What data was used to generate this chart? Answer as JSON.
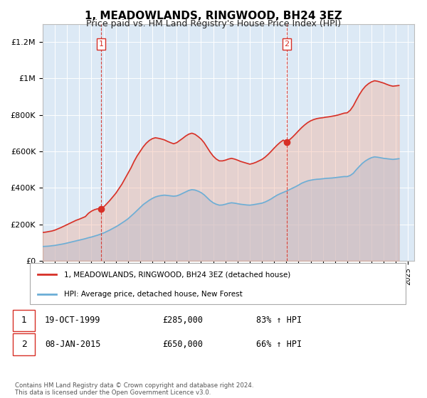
{
  "title": "1, MEADOWLANDS, RINGWOOD, BH24 3EZ",
  "subtitle": "Price paid vs. HM Land Registry's House Price Index (HPI)",
  "title_fontsize": 11,
  "subtitle_fontsize": 9,
  "background_color": "#ffffff",
  "plot_bg_color": "#dce9f5",
  "grid_color": "#ffffff",
  "ylabel_ticks": [
    "£0",
    "£200K",
    "£400K",
    "£600K",
    "£800K",
    "£1M",
    "£1.2M"
  ],
  "ytick_values": [
    0,
    200000,
    400000,
    600000,
    800000,
    1000000,
    1200000
  ],
  "ylim": [
    0,
    1300000
  ],
  "xlim_start": 1995.0,
  "xlim_end": 2025.5,
  "hpi_line_color": "#6baed6",
  "price_line_color": "#d73027",
  "hpi_fill_color": "#a8c8e8",
  "price_fill_color": "#f4a58a",
  "purchase1_x": 1999.8,
  "purchase1_y": 285000,
  "purchase1_label": "1",
  "purchase2_x": 2015.05,
  "purchase2_y": 650000,
  "purchase2_label": "2",
  "marker_vline_color": "#d73027",
  "legend_entries": [
    "1, MEADOWLANDS, RINGWOOD, BH24 3EZ (detached house)",
    "HPI: Average price, detached house, New Forest"
  ],
  "table_rows": [
    [
      "1",
      "19-OCT-1999",
      "£285,000",
      "83% ↑ HPI"
    ],
    [
      "2",
      "08-JAN-2015",
      "£650,000",
      "66% ↑ HPI"
    ]
  ],
  "footer_text": "Contains HM Land Registry data © Crown copyright and database right 2024.\nThis data is licensed under the Open Government Licence v3.0.",
  "hpi_data_x": [
    1995.0,
    1995.25,
    1995.5,
    1995.75,
    1996.0,
    1996.25,
    1996.5,
    1996.75,
    1997.0,
    1997.25,
    1997.5,
    1997.75,
    1998.0,
    1998.25,
    1998.5,
    1998.75,
    1999.0,
    1999.25,
    1999.5,
    1999.75,
    2000.0,
    2000.25,
    2000.5,
    2000.75,
    2001.0,
    2001.25,
    2001.5,
    2001.75,
    2002.0,
    2002.25,
    2002.5,
    2002.75,
    2003.0,
    2003.25,
    2003.5,
    2003.75,
    2004.0,
    2004.25,
    2004.5,
    2004.75,
    2005.0,
    2005.25,
    2005.5,
    2005.75,
    2006.0,
    2006.25,
    2006.5,
    2006.75,
    2007.0,
    2007.25,
    2007.5,
    2007.75,
    2008.0,
    2008.25,
    2008.5,
    2008.75,
    2009.0,
    2009.25,
    2009.5,
    2009.75,
    2010.0,
    2010.25,
    2010.5,
    2010.75,
    2011.0,
    2011.25,
    2011.5,
    2011.75,
    2012.0,
    2012.25,
    2012.5,
    2012.75,
    2013.0,
    2013.25,
    2013.5,
    2013.75,
    2014.0,
    2014.25,
    2014.5,
    2014.75,
    2015.0,
    2015.25,
    2015.5,
    2015.75,
    2016.0,
    2016.25,
    2016.5,
    2016.75,
    2017.0,
    2017.25,
    2017.5,
    2017.75,
    2018.0,
    2018.25,
    2018.5,
    2018.75,
    2019.0,
    2019.25,
    2019.5,
    2019.75,
    2020.0,
    2020.25,
    2020.5,
    2020.75,
    2021.0,
    2021.25,
    2021.5,
    2021.75,
    2022.0,
    2022.25,
    2022.5,
    2022.75,
    2023.0,
    2023.25,
    2023.5,
    2023.75,
    2024.0,
    2024.25
  ],
  "hpi_data_y": [
    78000,
    79000,
    80000,
    82000,
    84000,
    87000,
    90000,
    93000,
    97000,
    101000,
    105000,
    109000,
    113000,
    117000,
    121000,
    126000,
    130000,
    135000,
    140000,
    146000,
    152000,
    160000,
    168000,
    177000,
    186000,
    196000,
    207000,
    218000,
    230000,
    245000,
    260000,
    276000,
    292000,
    308000,
    320000,
    332000,
    342000,
    350000,
    355000,
    358000,
    360000,
    358000,
    356000,
    354000,
    356000,
    362000,
    370000,
    378000,
    386000,
    390000,
    388000,
    382000,
    374000,
    362000,
    346000,
    330000,
    318000,
    310000,
    305000,
    306000,
    310000,
    315000,
    318000,
    316000,
    313000,
    310000,
    308000,
    306000,
    305000,
    307000,
    310000,
    313000,
    316000,
    322000,
    330000,
    339000,
    350000,
    360000,
    368000,
    375000,
    382000,
    390000,
    398000,
    406000,
    415000,
    425000,
    432000,
    438000,
    442000,
    445000,
    447000,
    448000,
    450000,
    452000,
    453000,
    454000,
    456000,
    458000,
    460000,
    462000,
    462000,
    468000,
    480000,
    500000,
    518000,
    535000,
    548000,
    558000,
    566000,
    570000,
    568000,
    565000,
    562000,
    560000,
    558000,
    556000,
    558000,
    560000
  ],
  "price_data_x": [
    1995.0,
    1995.25,
    1995.5,
    1995.75,
    1996.0,
    1996.25,
    1996.5,
    1996.75,
    1997.0,
    1997.25,
    1997.5,
    1997.75,
    1998.0,
    1998.25,
    1998.5,
    1998.75,
    1999.0,
    1999.25,
    1999.5,
    1999.75,
    2000.0,
    2000.25,
    2000.5,
    2000.75,
    2001.0,
    2001.25,
    2001.5,
    2001.75,
    2002.0,
    2002.25,
    2002.5,
    2002.75,
    2003.0,
    2003.25,
    2003.5,
    2003.75,
    2004.0,
    2004.25,
    2004.5,
    2004.75,
    2005.0,
    2005.25,
    2005.5,
    2005.75,
    2006.0,
    2006.25,
    2006.5,
    2006.75,
    2007.0,
    2007.25,
    2007.5,
    2007.75,
    2008.0,
    2008.25,
    2008.5,
    2008.75,
    2009.0,
    2009.25,
    2009.5,
    2009.75,
    2010.0,
    2010.25,
    2010.5,
    2010.75,
    2011.0,
    2011.25,
    2011.5,
    2011.75,
    2012.0,
    2012.25,
    2012.5,
    2012.75,
    2013.0,
    2013.25,
    2013.5,
    2013.75,
    2014.0,
    2014.25,
    2014.5,
    2014.75,
    2015.0,
    2015.25,
    2015.5,
    2015.75,
    2016.0,
    2016.25,
    2016.5,
    2016.75,
    2017.0,
    2017.25,
    2017.5,
    2017.75,
    2018.0,
    2018.25,
    2018.5,
    2018.75,
    2019.0,
    2019.25,
    2019.5,
    2019.75,
    2020.0,
    2020.25,
    2020.5,
    2020.75,
    2021.0,
    2021.25,
    2021.5,
    2021.75,
    2022.0,
    2022.25,
    2022.5,
    2022.75,
    2023.0,
    2023.25,
    2023.5,
    2023.75,
    2024.0,
    2024.25
  ],
  "price_data_y": [
    155000,
    157000,
    160000,
    163000,
    168000,
    175000,
    182000,
    190000,
    198000,
    206000,
    214000,
    222000,
    228000,
    235000,
    242000,
    260000,
    272000,
    280000,
    285000,
    285000,
    295000,
    312000,
    330000,
    350000,
    370000,
    395000,
    420000,
    450000,
    480000,
    510000,
    545000,
    575000,
    600000,
    625000,
    645000,
    660000,
    670000,
    675000,
    672000,
    668000,
    663000,
    655000,
    648000,
    642000,
    648000,
    660000,
    672000,
    685000,
    695000,
    700000,
    694000,
    682000,
    668000,
    648000,
    622000,
    596000,
    574000,
    558000,
    548000,
    548000,
    552000,
    558000,
    562000,
    558000,
    552000,
    545000,
    540000,
    535000,
    530000,
    534000,
    540000,
    548000,
    556000,
    568000,
    583000,
    600000,
    618000,
    635000,
    650000,
    662000,
    650000,
    663000,
    678000,
    695000,
    713000,
    730000,
    745000,
    758000,
    768000,
    775000,
    780000,
    783000,
    785000,
    788000,
    790000,
    793000,
    796000,
    800000,
    805000,
    810000,
    812000,
    826000,
    850000,
    882000,
    912000,
    938000,
    958000,
    972000,
    982000,
    988000,
    985000,
    980000,
    975000,
    968000,
    962000,
    958000,
    960000,
    962000
  ]
}
